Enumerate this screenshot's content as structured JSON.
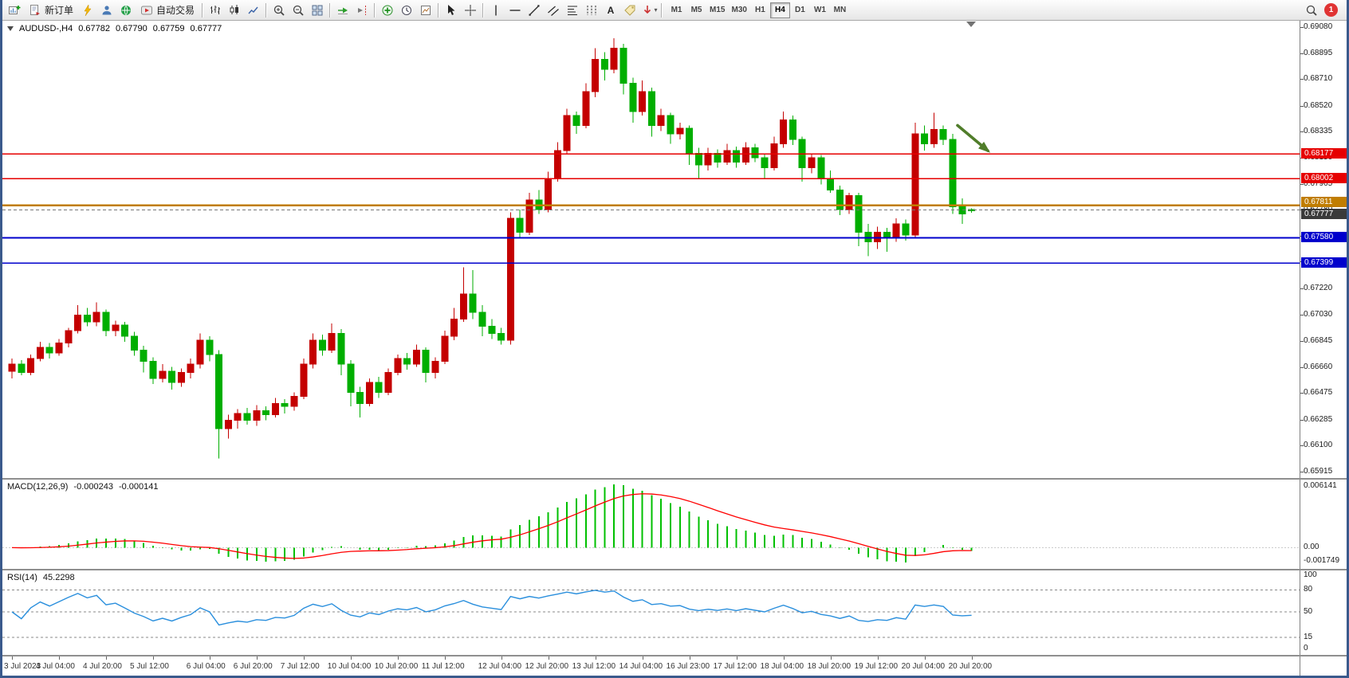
{
  "toolbar": {
    "new_order_label": "新订单",
    "autotrading_label": "自动交易",
    "text_tool_glyph": "A",
    "timeframes": [
      "M1",
      "M5",
      "M15",
      "M30",
      "H1",
      "H4",
      "D1",
      "W1",
      "MN"
    ],
    "active_timeframe": "H4",
    "notification_count": "1",
    "icons": [
      "new-chart",
      "new-order",
      "metaeditor",
      "profiles",
      "community",
      "autotrading",
      "ohlc-bars",
      "candlesticks",
      "line-chart",
      "zoom-in",
      "zoom-out",
      "tile-windows",
      "auto-scroll",
      "chart-shift",
      "indicators",
      "periods",
      "templates",
      "cursor",
      "crosshair",
      "vertical-line",
      "horizontal-line",
      "trendline",
      "equidistant-channel",
      "fibonacci",
      "cycle-lines",
      "text",
      "text-label",
      "arrows",
      "search",
      "notifications"
    ]
  },
  "chart": {
    "header": {
      "symbol": "AUDUSD-,H4",
      "open": "0.67782",
      "high": "0.67790",
      "low": "0.67759",
      "close": "0.67777"
    }
  },
  "chart_data": {
    "type": "candlestick",
    "symbol": "AUDUSD-",
    "timeframe": "H4",
    "price_axis": {
      "min": 0.65915,
      "max": 0.6908,
      "tick_labels": [
        "0.69080",
        "0.68895",
        "0.68710",
        "0.68520",
        "0.68335",
        "0.68150",
        "0.67965",
        "0.67780",
        "0.67595",
        "0.67410",
        "0.67220",
        "0.67030",
        "0.66845",
        "0.66660",
        "0.66475",
        "0.66285",
        "0.66100",
        "0.65915"
      ]
    },
    "colors": {
      "up": "#c40000",
      "down": "#00ae00",
      "macd_hist": "#00c000",
      "macd_signal": "#ff0000",
      "rsi": "#2a8fdd",
      "background": "#ffffff"
    },
    "candles": [
      [
        0.6663,
        0.6672,
        0.6658,
        0.6668
      ],
      [
        0.6668,
        0.6671,
        0.666,
        0.6662
      ],
      [
        0.6662,
        0.6675,
        0.666,
        0.6672
      ],
      [
        0.6672,
        0.6684,
        0.667,
        0.668
      ],
      [
        0.668,
        0.6683,
        0.6672,
        0.6676
      ],
      [
        0.6676,
        0.6686,
        0.6674,
        0.6683
      ],
      [
        0.6683,
        0.6694,
        0.668,
        0.6692
      ],
      [
        0.6692,
        0.671,
        0.669,
        0.6703
      ],
      [
        0.6703,
        0.6708,
        0.6695,
        0.6698
      ],
      [
        0.6698,
        0.6712,
        0.6695,
        0.6705
      ],
      [
        0.6705,
        0.6707,
        0.6688,
        0.6692
      ],
      [
        0.6692,
        0.6699,
        0.6688,
        0.6696
      ],
      [
        0.6696,
        0.6698,
        0.6684,
        0.6688
      ],
      [
        0.6688,
        0.6691,
        0.6674,
        0.6678
      ],
      [
        0.6678,
        0.6681,
        0.6662,
        0.667
      ],
      [
        0.667,
        0.6673,
        0.6654,
        0.6658
      ],
      [
        0.6658,
        0.6668,
        0.6655,
        0.6663
      ],
      [
        0.6663,
        0.6666,
        0.665,
        0.6655
      ],
      [
        0.6655,
        0.6665,
        0.6652,
        0.6662
      ],
      [
        0.6662,
        0.6672,
        0.6658,
        0.6668
      ],
      [
        0.6668,
        0.669,
        0.6665,
        0.6685
      ],
      [
        0.6685,
        0.6688,
        0.667,
        0.6675
      ],
      [
        0.6675,
        0.6678,
        0.6601,
        0.6622
      ],
      [
        0.6622,
        0.6632,
        0.6615,
        0.6628
      ],
      [
        0.6628,
        0.6636,
        0.6622,
        0.6633
      ],
      [
        0.6633,
        0.6637,
        0.6625,
        0.6628
      ],
      [
        0.6628,
        0.6639,
        0.6624,
        0.6635
      ],
      [
        0.6635,
        0.6638,
        0.6628,
        0.6632
      ],
      [
        0.6632,
        0.6644,
        0.663,
        0.664
      ],
      [
        0.664,
        0.6643,
        0.6633,
        0.6638
      ],
      [
        0.6638,
        0.6648,
        0.6635,
        0.6645
      ],
      [
        0.6645,
        0.6672,
        0.6643,
        0.6668
      ],
      [
        0.6668,
        0.669,
        0.6665,
        0.6685
      ],
      [
        0.6685,
        0.6689,
        0.6674,
        0.6678
      ],
      [
        0.6678,
        0.6697,
        0.6676,
        0.669
      ],
      [
        0.669,
        0.6693,
        0.666,
        0.6668
      ],
      [
        0.6668,
        0.6671,
        0.6638,
        0.6648
      ],
      [
        0.6648,
        0.6652,
        0.663,
        0.664
      ],
      [
        0.664,
        0.6658,
        0.6638,
        0.6655
      ],
      [
        0.6655,
        0.6659,
        0.6644,
        0.6648
      ],
      [
        0.6648,
        0.6665,
        0.6646,
        0.6662
      ],
      [
        0.6662,
        0.6675,
        0.666,
        0.6672
      ],
      [
        0.6672,
        0.6676,
        0.6664,
        0.6668
      ],
      [
        0.6668,
        0.6682,
        0.6666,
        0.6678
      ],
      [
        0.6678,
        0.668,
        0.6655,
        0.6662
      ],
      [
        0.6662,
        0.6673,
        0.6658,
        0.667
      ],
      [
        0.667,
        0.6692,
        0.6668,
        0.6688
      ],
      [
        0.6688,
        0.6708,
        0.6685,
        0.67
      ],
      [
        0.67,
        0.6737,
        0.6698,
        0.6718
      ],
      [
        0.6718,
        0.6735,
        0.67,
        0.6705
      ],
      [
        0.6705,
        0.671,
        0.6688,
        0.6695
      ],
      [
        0.6695,
        0.67,
        0.6686,
        0.669
      ],
      [
        0.669,
        0.6694,
        0.6682,
        0.6685
      ],
      [
        0.6685,
        0.6776,
        0.6682,
        0.6772
      ],
      [
        0.6772,
        0.6778,
        0.6758,
        0.6762
      ],
      [
        0.6762,
        0.679,
        0.676,
        0.6785
      ],
      [
        0.6785,
        0.6792,
        0.6775,
        0.6778
      ],
      [
        0.6778,
        0.6805,
        0.6776,
        0.68
      ],
      [
        0.68,
        0.6826,
        0.6798,
        0.682
      ],
      [
        0.682,
        0.685,
        0.6818,
        0.6845
      ],
      [
        0.6845,
        0.6848,
        0.6832,
        0.6838
      ],
      [
        0.6838,
        0.6868,
        0.6836,
        0.6862
      ],
      [
        0.6862,
        0.6893,
        0.6858,
        0.6885
      ],
      [
        0.6885,
        0.689,
        0.687,
        0.6878
      ],
      [
        0.6878,
        0.69,
        0.6875,
        0.6893
      ],
      [
        0.6893,
        0.6896,
        0.686,
        0.6868
      ],
      [
        0.6868,
        0.6872,
        0.684,
        0.6848
      ],
      [
        0.6848,
        0.687,
        0.6845,
        0.6862
      ],
      [
        0.6862,
        0.6865,
        0.683,
        0.6838
      ],
      [
        0.6838,
        0.685,
        0.6834,
        0.6845
      ],
      [
        0.6845,
        0.6847,
        0.6825,
        0.6832
      ],
      [
        0.6832,
        0.684,
        0.6828,
        0.6836
      ],
      [
        0.6836,
        0.6838,
        0.681,
        0.6818
      ],
      [
        0.6818,
        0.6822,
        0.68,
        0.681
      ],
      [
        0.681,
        0.6822,
        0.6806,
        0.6818
      ],
      [
        0.6818,
        0.6821,
        0.6808,
        0.6812
      ],
      [
        0.6812,
        0.6825,
        0.681,
        0.682
      ],
      [
        0.682,
        0.6823,
        0.6808,
        0.6812
      ],
      [
        0.6812,
        0.6826,
        0.681,
        0.6822
      ],
      [
        0.6822,
        0.6825,
        0.6812,
        0.6815
      ],
      [
        0.6815,
        0.6818,
        0.68,
        0.6808
      ],
      [
        0.6808,
        0.683,
        0.6806,
        0.6825
      ],
      [
        0.6825,
        0.6848,
        0.6822,
        0.6842
      ],
      [
        0.6842,
        0.6845,
        0.6824,
        0.6828
      ],
      [
        0.6828,
        0.683,
        0.6798,
        0.6808
      ],
      [
        0.6808,
        0.6818,
        0.6804,
        0.6815
      ],
      [
        0.6815,
        0.6817,
        0.6796,
        0.68
      ],
      [
        0.68,
        0.6806,
        0.679,
        0.6792
      ],
      [
        0.6792,
        0.6795,
        0.6774,
        0.6778
      ],
      [
        0.6778,
        0.679,
        0.6775,
        0.6788
      ],
      [
        0.6788,
        0.679,
        0.6752,
        0.6762
      ],
      [
        0.6762,
        0.6768,
        0.6745,
        0.6755
      ],
      [
        0.6755,
        0.6766,
        0.675,
        0.6762
      ],
      [
        0.6762,
        0.6765,
        0.6748,
        0.6758
      ],
      [
        0.6758,
        0.6772,
        0.6755,
        0.6768
      ],
      [
        0.6768,
        0.6771,
        0.6756,
        0.676
      ],
      [
        0.676,
        0.684,
        0.6758,
        0.6832
      ],
      [
        0.6832,
        0.6838,
        0.682,
        0.6825
      ],
      [
        0.6825,
        0.6847,
        0.6822,
        0.6835
      ],
      [
        0.6835,
        0.6838,
        0.6824,
        0.6828
      ],
      [
        0.6828,
        0.6832,
        0.6775,
        0.678
      ],
      [
        0.678,
        0.6786,
        0.6768,
        0.6775
      ],
      [
        0.67782,
        0.6779,
        0.67759,
        0.67777
      ]
    ],
    "time_labels": [
      {
        "index": 0,
        "label": "3 Jul 2023"
      },
      {
        "index": 5,
        "label": "4 Jul 04:00"
      },
      {
        "index": 10,
        "label": "4 Jul 20:00"
      },
      {
        "index": 15,
        "label": "5 Jul 12:00"
      },
      {
        "index": 21,
        "label": "6 Jul 04:00"
      },
      {
        "index": 26,
        "label": "6 Jul 20:00"
      },
      {
        "index": 31,
        "label": "7 Jul 12:00"
      },
      {
        "index": 36,
        "label": "10 Jul 04:00"
      },
      {
        "index": 41,
        "label": "10 Jul 20:00"
      },
      {
        "index": 46,
        "label": "11 Jul 12:00"
      },
      {
        "index": 52,
        "label": "12 Jul 04:00"
      },
      {
        "index": 57,
        "label": "12 Jul 20:00"
      },
      {
        "index": 62,
        "label": "13 Jul 12:00"
      },
      {
        "index": 67,
        "label": "14 Jul 04:00"
      },
      {
        "index": 72,
        "label": "16 Jul 23:00"
      },
      {
        "index": 77,
        "label": "17 Jul 12:00"
      },
      {
        "index": 82,
        "label": "18 Jul 04:00"
      },
      {
        "index": 87,
        "label": "18 Jul 20:00"
      },
      {
        "index": 92,
        "label": "19 Jul 12:00"
      },
      {
        "index": 97,
        "label": "20 Jul 04:00"
      },
      {
        "index": 102,
        "label": "20 Jul 20:00"
      }
    ],
    "hlines": [
      {
        "price": 0.68177,
        "label": "0.68177",
        "color": "#e60000",
        "width": 1.6,
        "role": "resistance",
        "badge_dy": 0
      },
      {
        "price": 0.68002,
        "label": "0.68002",
        "color": "#e60000",
        "width": 1.6,
        "role": "resistance",
        "badge_dy": 0
      },
      {
        "price": 0.67811,
        "label": "0.67811",
        "color": "#c07d00",
        "width": 2.4,
        "role": "pivot",
        "badge_dy": -4
      },
      {
        "price": 0.6758,
        "label": "0.67580",
        "color": "#0000cc",
        "width": 1.6,
        "role": "support",
        "badge_dy": 0
      },
      {
        "price": 0.67399,
        "label": "0.67399",
        "color": "#0000cc",
        "width": 1.6,
        "role": "support",
        "badge_dy": 0
      }
    ],
    "current_price": {
      "value": 0.67777,
      "label": "0.67777",
      "badge_color": "#3a3a3a"
    },
    "annotations": [
      {
        "type": "arrow",
        "color": "#507d2a",
        "from_price": 0.6838,
        "to_price": 0.682,
        "note": "sell arrow pointing down toward resistance 0.68177"
      }
    ],
    "indicators": {
      "macd": {
        "label": "MACD(12,26,9)",
        "value_macd": "-0.000243",
        "value_signal": "-0.000141",
        "fast": 12,
        "slow": 26,
        "signal": 9,
        "axis_labels": [
          "0.006141",
          "0.00",
          "-0.001749"
        ]
      },
      "rsi": {
        "label": "RSI(14)",
        "value": "45.2298",
        "period": 14,
        "levels": [
          80,
          50,
          15
        ],
        "axis_labels": [
          "100",
          "80",
          "50",
          "15",
          "0"
        ]
      }
    }
  }
}
